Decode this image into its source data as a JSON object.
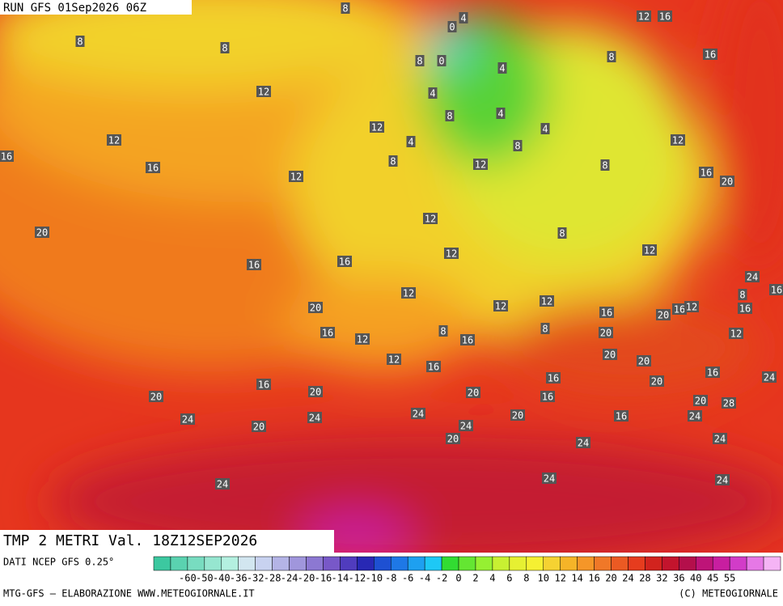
{
  "header": {
    "run": "RUN GFS 01Sep2026 06Z"
  },
  "map": {
    "labels": [
      4,
      0,
      8,
      12,
      16,
      8,
      8,
      8,
      0,
      4,
      8,
      16,
      12,
      4,
      4,
      8,
      12,
      4,
      12,
      4,
      8,
      12,
      16,
      16,
      8,
      12,
      8,
      12,
      16,
      20,
      12,
      20,
      8,
      12,
      12,
      16,
      16,
      24,
      16,
      8,
      12,
      12,
      12,
      20,
      16,
      20,
      16,
      12,
      16,
      8,
      8,
      16,
      12,
      16,
      20,
      12,
      12,
      20,
      20,
      16,
      16,
      16,
      24,
      16,
      20,
      20,
      20,
      20,
      16,
      20,
      28,
      24,
      24,
      24,
      20,
      16,
      24,
      20,
      24,
      20,
      24,
      24,
      24,
      24,
      24
    ]
  },
  "footer": {
    "title": "TMP 2 METRI Val. 18Z12SEP2026",
    "source": "DATI NCEP GFS 0.25°",
    "credit_left": "MTG-GFS — ELABORAZIONE WWW.METEOGIORNALE.IT",
    "credit_right": "(C) METEOGIORNALE"
  },
  "legend": {
    "labels": [
      -60,
      -50,
      -40,
      -36,
      -32,
      -28,
      -24,
      -20,
      -16,
      -14,
      -12,
      -10,
      -8,
      -6,
      -4,
      -2,
      0,
      2,
      4,
      6,
      8,
      10,
      12,
      14,
      16,
      20,
      24,
      28,
      32,
      36,
      40,
      45,
      55
    ]
  }
}
